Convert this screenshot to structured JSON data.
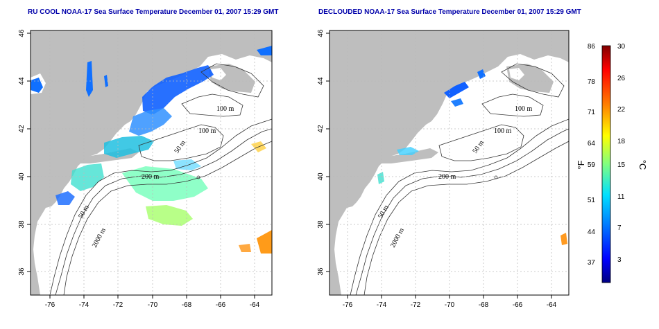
{
  "panels": [
    {
      "title": "RU COOL NOAA-17 Sea Surface Temperature December 01, 2007 15:29 GMT",
      "contour_labels": [
        "100 m",
        "100 m",
        "50 m",
        "200 m",
        "50 m",
        "2000 m"
      ]
    },
    {
      "title": "DECLOUDED NOAA-17 Sea Surface Temperature December 01, 2007 15:29 GMT",
      "contour_labels": [
        "100 m",
        "100 m",
        "50 m",
        "200 m",
        "50 m",
        "2000 m"
      ]
    }
  ],
  "axes": {
    "x_ticks": [
      "-76",
      "-74",
      "-72",
      "-70",
      "-68",
      "-66",
      "-64"
    ],
    "y_ticks": [
      "46",
      "44",
      "42",
      "40",
      "38",
      "36"
    ]
  },
  "colorbar": {
    "fahrenheit_ticks": [
      "86",
      "78",
      "71",
      "64",
      "59",
      "51",
      "44",
      "37"
    ],
    "celsius_ticks": [
      "30",
      "26",
      "22",
      "18",
      "15",
      "11",
      "7",
      "3"
    ],
    "fahrenheit_unit": "°F",
    "celsius_unit": "°C"
  },
  "colors": {
    "title": "#0000aa",
    "land": "#bebebe",
    "grid": "#bbbbbb"
  }
}
